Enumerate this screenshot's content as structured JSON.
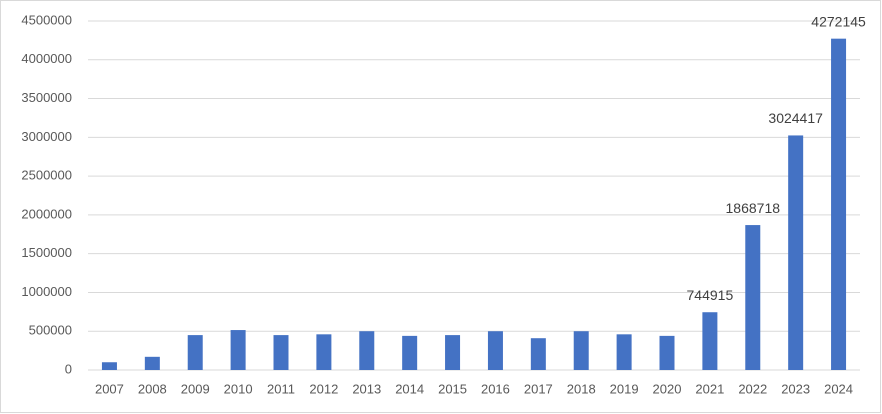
{
  "chart_data": {
    "type": "bar",
    "categories": [
      "2007",
      "2008",
      "2009",
      "2010",
      "2011",
      "2012",
      "2013",
      "2014",
      "2015",
      "2016",
      "2017",
      "2018",
      "2019",
      "2020",
      "2021",
      "2022",
      "2023",
      "2024"
    ],
    "values": [
      100000,
      170000,
      450000,
      515000,
      450000,
      460000,
      500000,
      440000,
      450000,
      500000,
      410000,
      500000,
      460000,
      440000,
      744915,
      1868718,
      3024417,
      4272145
    ],
    "value_labels": [
      null,
      null,
      null,
      null,
      null,
      null,
      null,
      null,
      null,
      null,
      null,
      null,
      null,
      null,
      "744915",
      "1868718",
      "3024417",
      "4272145"
    ],
    "color": "#4472c4",
    "ylim": [
      0,
      4500000
    ],
    "yticks": [
      0,
      500000,
      1000000,
      1500000,
      2000000,
      2500000,
      3000000,
      3500000,
      4000000,
      4500000
    ],
    "grid": true
  }
}
